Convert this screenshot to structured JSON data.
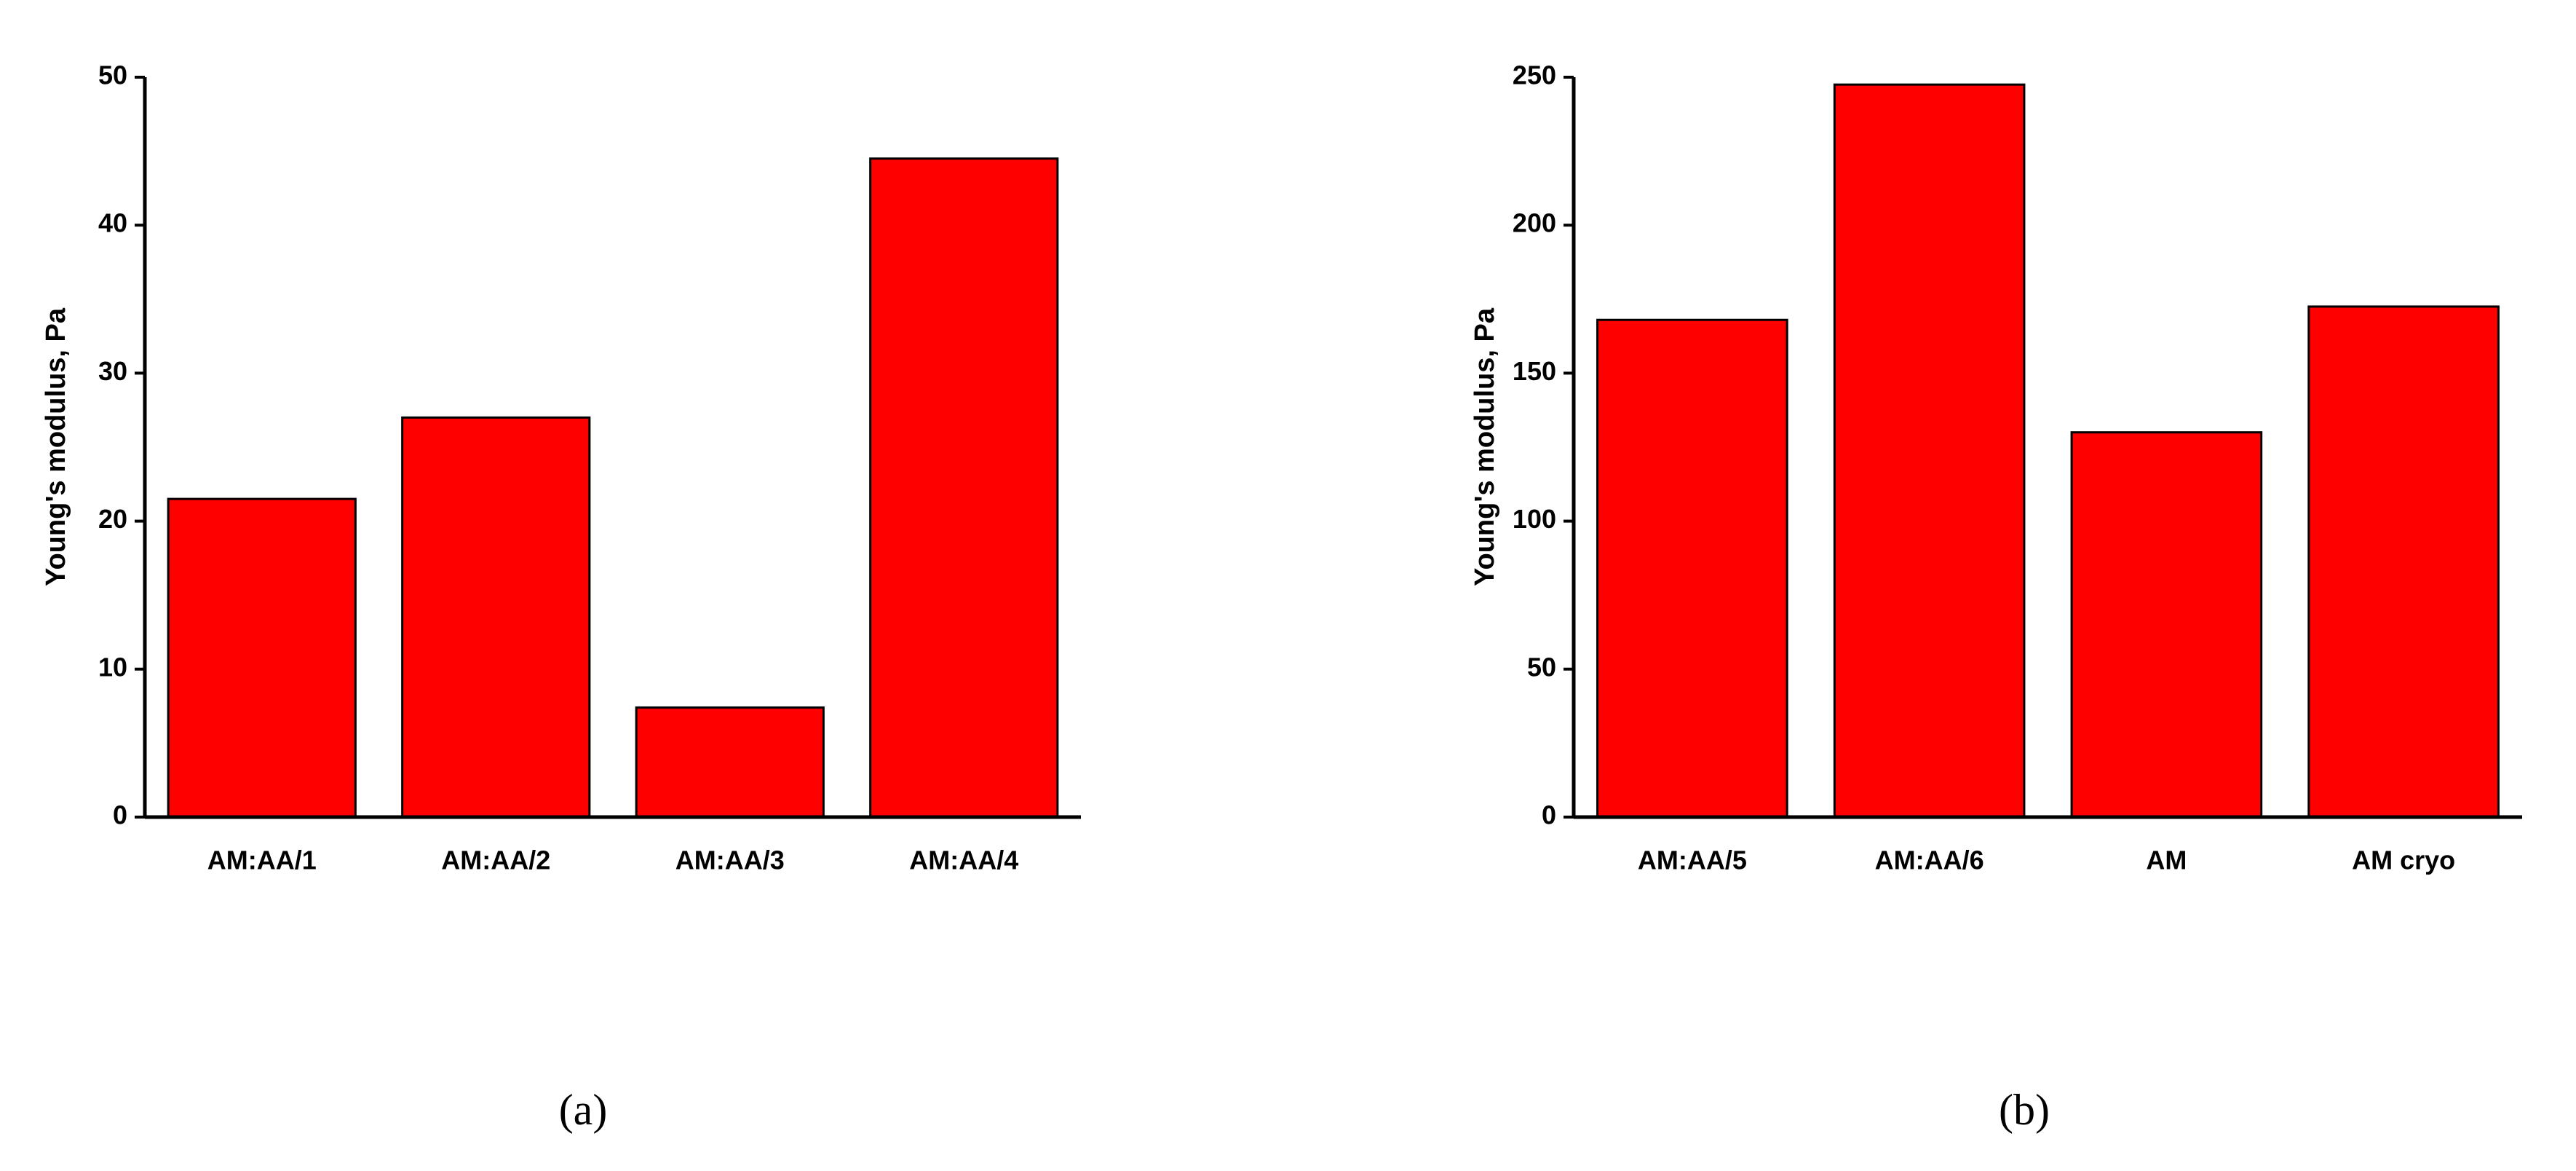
{
  "chart_data": [
    {
      "type": "bar",
      "caption": "(a)",
      "ylabel": "Young's modulus, Pa",
      "categories": [
        "AM:AA/1",
        "AM:AA/2",
        "AM:AA/3",
        "AM:AA/4"
      ],
      "values": [
        21.5,
        27,
        7.4,
        44.5
      ],
      "color": "#ff0000",
      "ylim": [
        0,
        50
      ],
      "yticks": [
        0,
        10,
        20,
        30,
        40,
        50
      ]
    },
    {
      "type": "bar",
      "caption": "(b)",
      "ylabel": "Young's modulus, Pa",
      "categories": [
        "AM:AA/5",
        "AM:AA/6",
        "AM",
        "AM cryo"
      ],
      "values": [
        168,
        247.5,
        130,
        172.5
      ],
      "color": "#ff0000",
      "ylim": [
        0,
        250
      ],
      "yticks": [
        0,
        50,
        100,
        150,
        200,
        250
      ]
    }
  ]
}
